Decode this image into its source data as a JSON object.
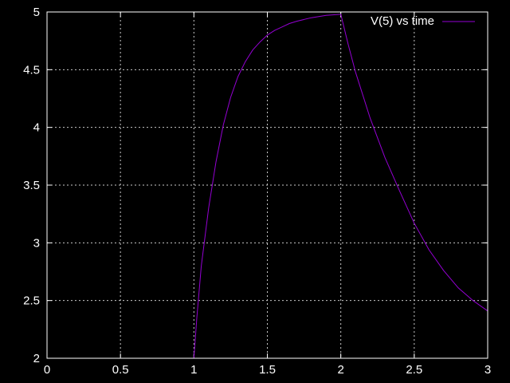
{
  "chart_data": {
    "type": "line",
    "title": "",
    "xlabel": "",
    "ylabel": "",
    "xlim": [
      0,
      3
    ],
    "ylim": [
      2,
      5
    ],
    "x_ticks": [
      "0",
      "0.5",
      "1",
      "1.5",
      "2",
      "2.5",
      "3"
    ],
    "y_ticks": [
      "2",
      "2.5",
      "3",
      "3.5",
      "4",
      "4.5",
      "5"
    ],
    "grid": true,
    "legend_position": "top-right",
    "background_color": "#000000",
    "series": [
      {
        "name": "V(5) vs time",
        "color": "#9400d3",
        "x": [
          1.0,
          1.02,
          1.05,
          1.1,
          1.15,
          1.2,
          1.25,
          1.3,
          1.35,
          1.4,
          1.45,
          1.5,
          1.55,
          1.6,
          1.65,
          1.7,
          1.8,
          1.9,
          2.0,
          2.05,
          2.1,
          2.2,
          2.3,
          2.4,
          2.5,
          2.6,
          2.7,
          2.8,
          2.9,
          3.0
        ],
        "y": [
          2.0,
          2.35,
          2.8,
          3.3,
          3.7,
          4.02,
          4.26,
          4.44,
          4.57,
          4.67,
          4.74,
          4.8,
          4.84,
          4.87,
          4.9,
          4.92,
          4.95,
          4.97,
          4.98,
          4.72,
          4.48,
          4.08,
          3.74,
          3.45,
          3.17,
          2.94,
          2.76,
          2.61,
          2.5,
          2.41
        ]
      }
    ]
  }
}
